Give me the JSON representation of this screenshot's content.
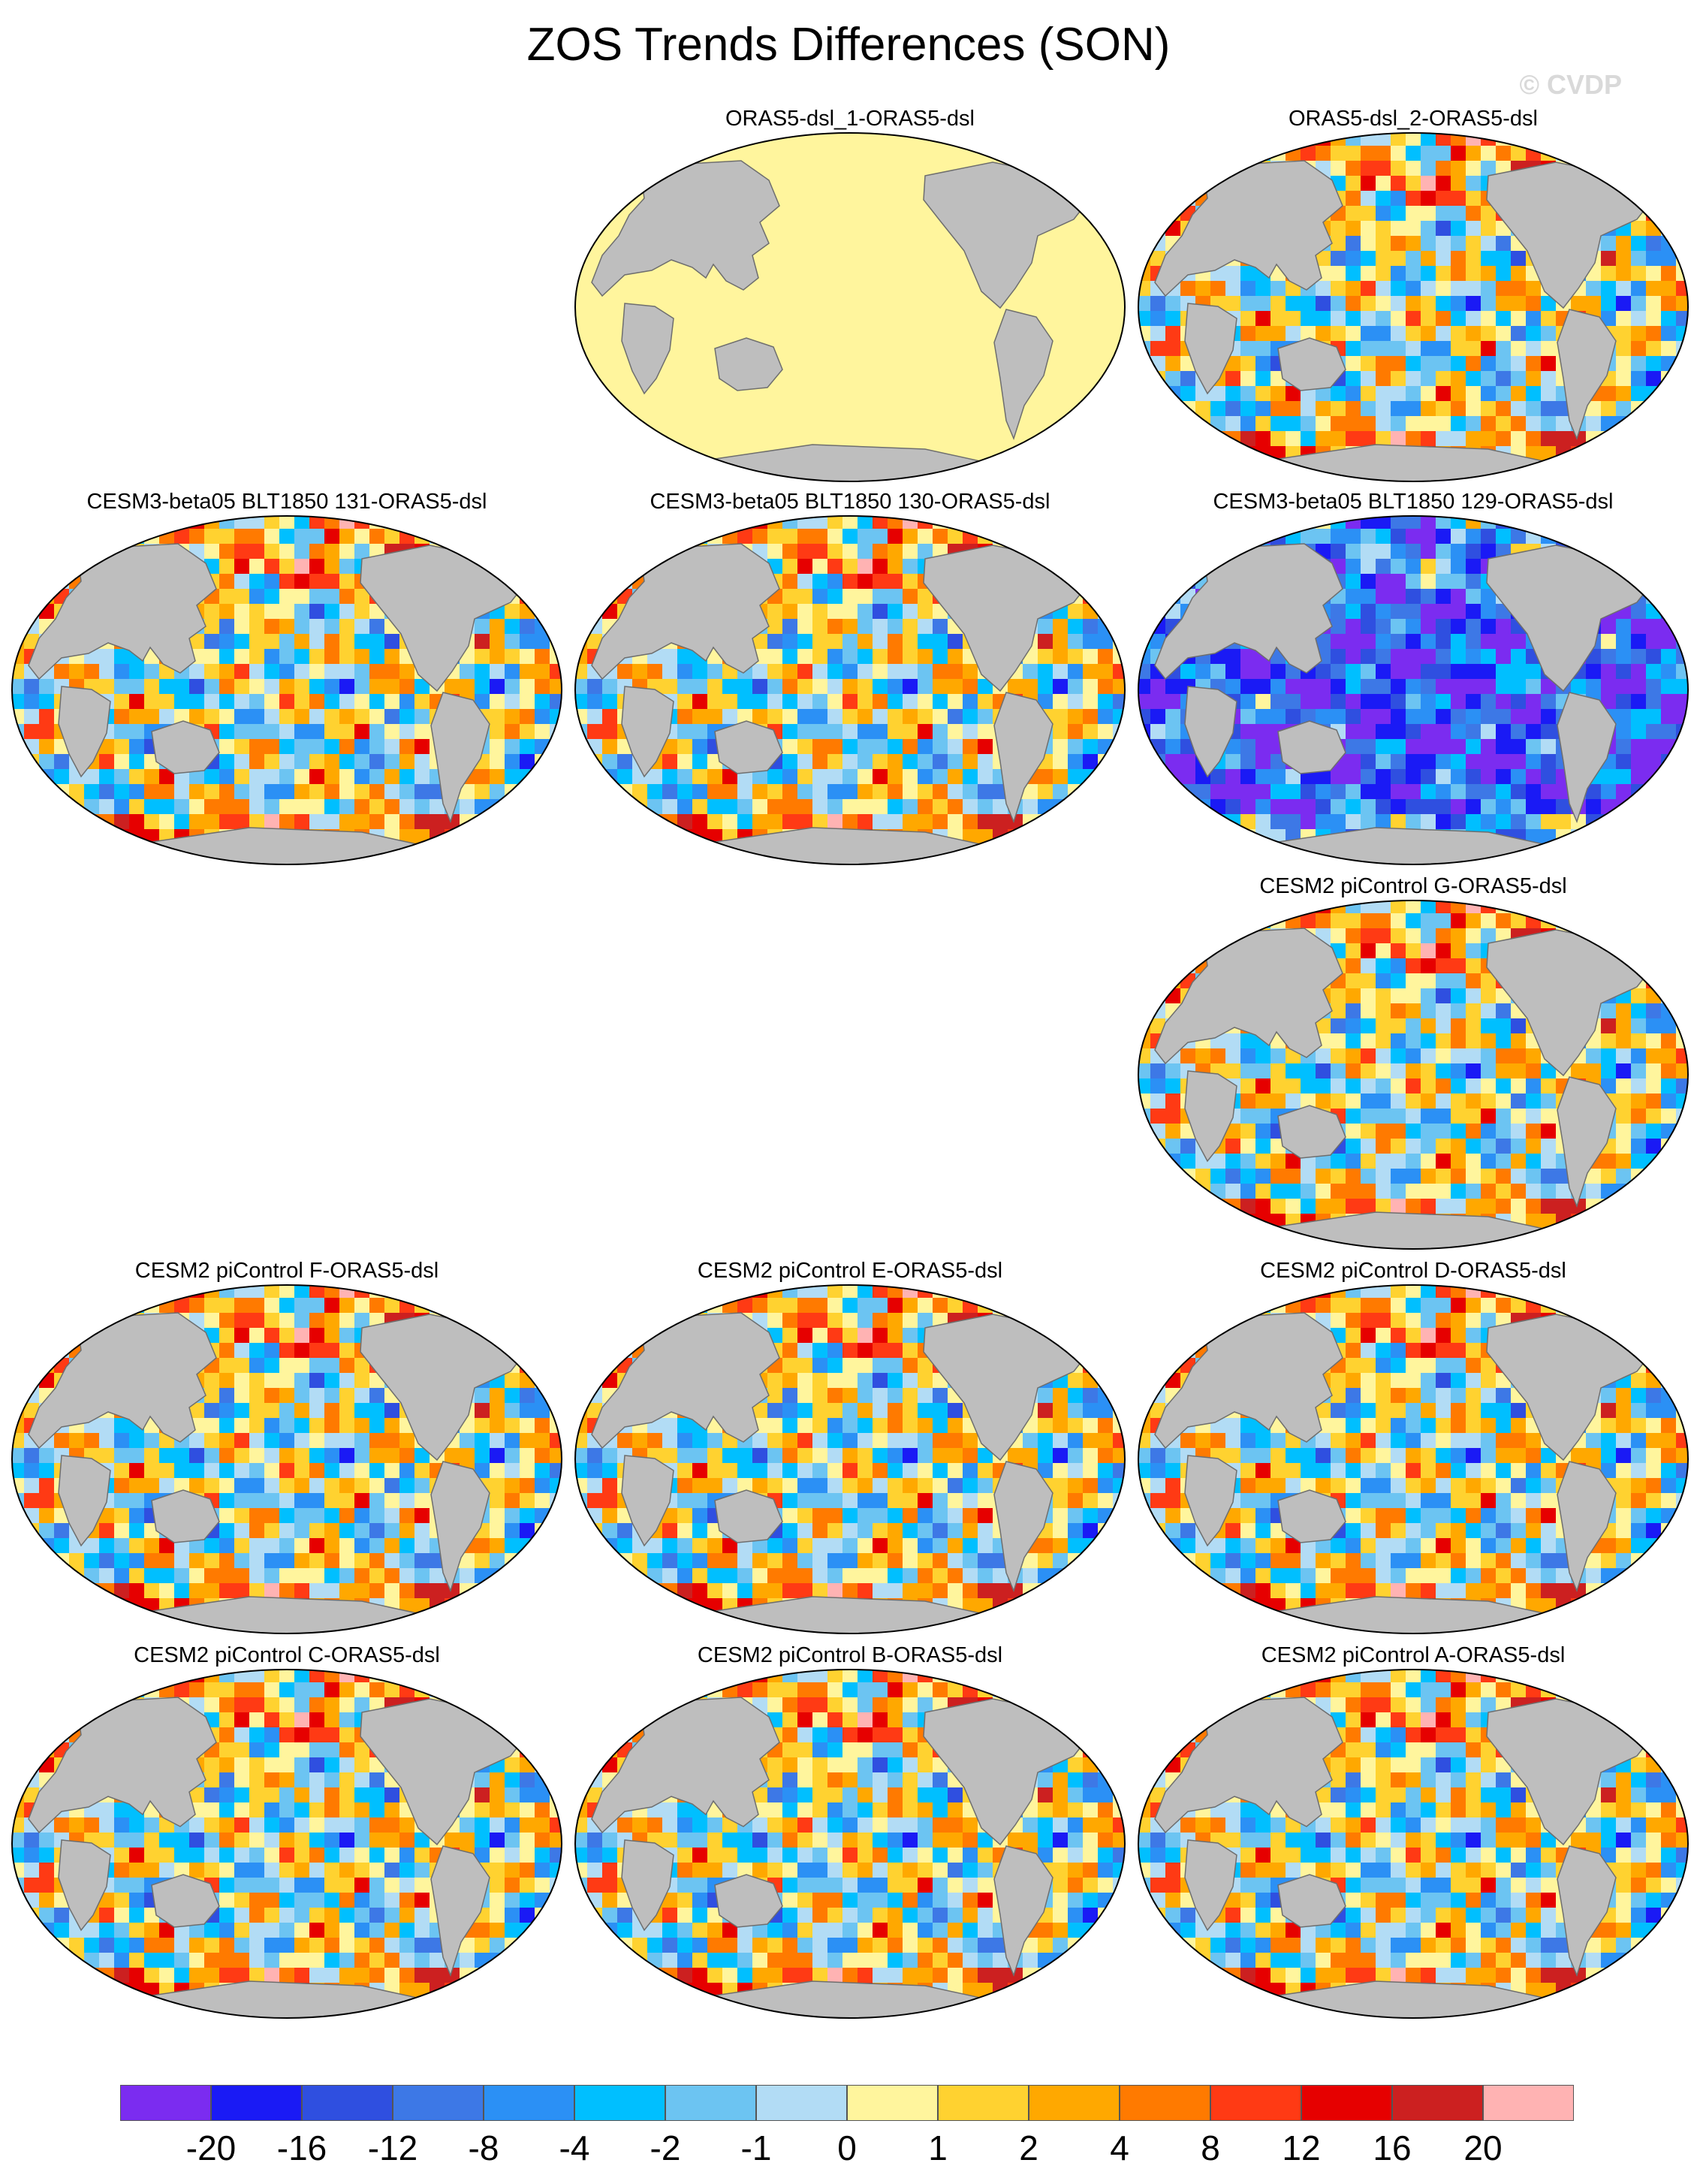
{
  "title": "ZOS Trends Differences (SON)",
  "watermark": "© CVDP",
  "colors": {
    "land": "#bebebe",
    "coast": "#6e6e6e",
    "panel_zero": "#fff59d"
  },
  "panels": [
    {
      "title": "ORAS5-dsl_1-ORAS5-dsl",
      "pattern": "zero"
    },
    {
      "title": "ORAS5-dsl_2-ORAS5-dsl",
      "pattern": "mixed"
    },
    {
      "title": "CESM3-beta05 BLT1850 131-ORAS5-dsl",
      "pattern": "mixed"
    },
    {
      "title": "CESM3-beta05 BLT1850 130-ORAS5-dsl",
      "pattern": "mixed"
    },
    {
      "title": "CESM3-beta05 BLT1850 129-ORAS5-dsl",
      "pattern": "negative"
    },
    {
      "title": "CESM2 piControl G-ORAS5-dsl",
      "pattern": "mixed"
    },
    {
      "title": "CESM2 piControl F-ORAS5-dsl",
      "pattern": "mixed"
    },
    {
      "title": "CESM2 piControl E-ORAS5-dsl",
      "pattern": "mixed"
    },
    {
      "title": "CESM2 piControl D-ORAS5-dsl",
      "pattern": "mixed"
    },
    {
      "title": "CESM2 piControl C-ORAS5-dsl",
      "pattern": "mixed"
    },
    {
      "title": "CESM2 piControl B-ORAS5-dsl",
      "pattern": "mixed"
    },
    {
      "title": "CESM2 piControl A-ORAS5-dsl",
      "pattern": "mixed"
    }
  ],
  "colorbar": {
    "colors": [
      "#7b2cf0",
      "#1a1af5",
      "#2f4fe0",
      "#3d78e6",
      "#2b90f5",
      "#00bfff",
      "#6cc4f2",
      "#b2dcf5",
      "#fff59d",
      "#ffd230",
      "#ffa800",
      "#ff7a00",
      "#ff3a14",
      "#e60000",
      "#cc2020",
      "#ffb3b3"
    ],
    "labels": [
      "-20",
      "-16",
      "-12",
      "-8",
      "-4",
      "-2",
      "-1",
      "0",
      "1",
      "2",
      "4",
      "8",
      "12",
      "16",
      "20"
    ]
  }
}
